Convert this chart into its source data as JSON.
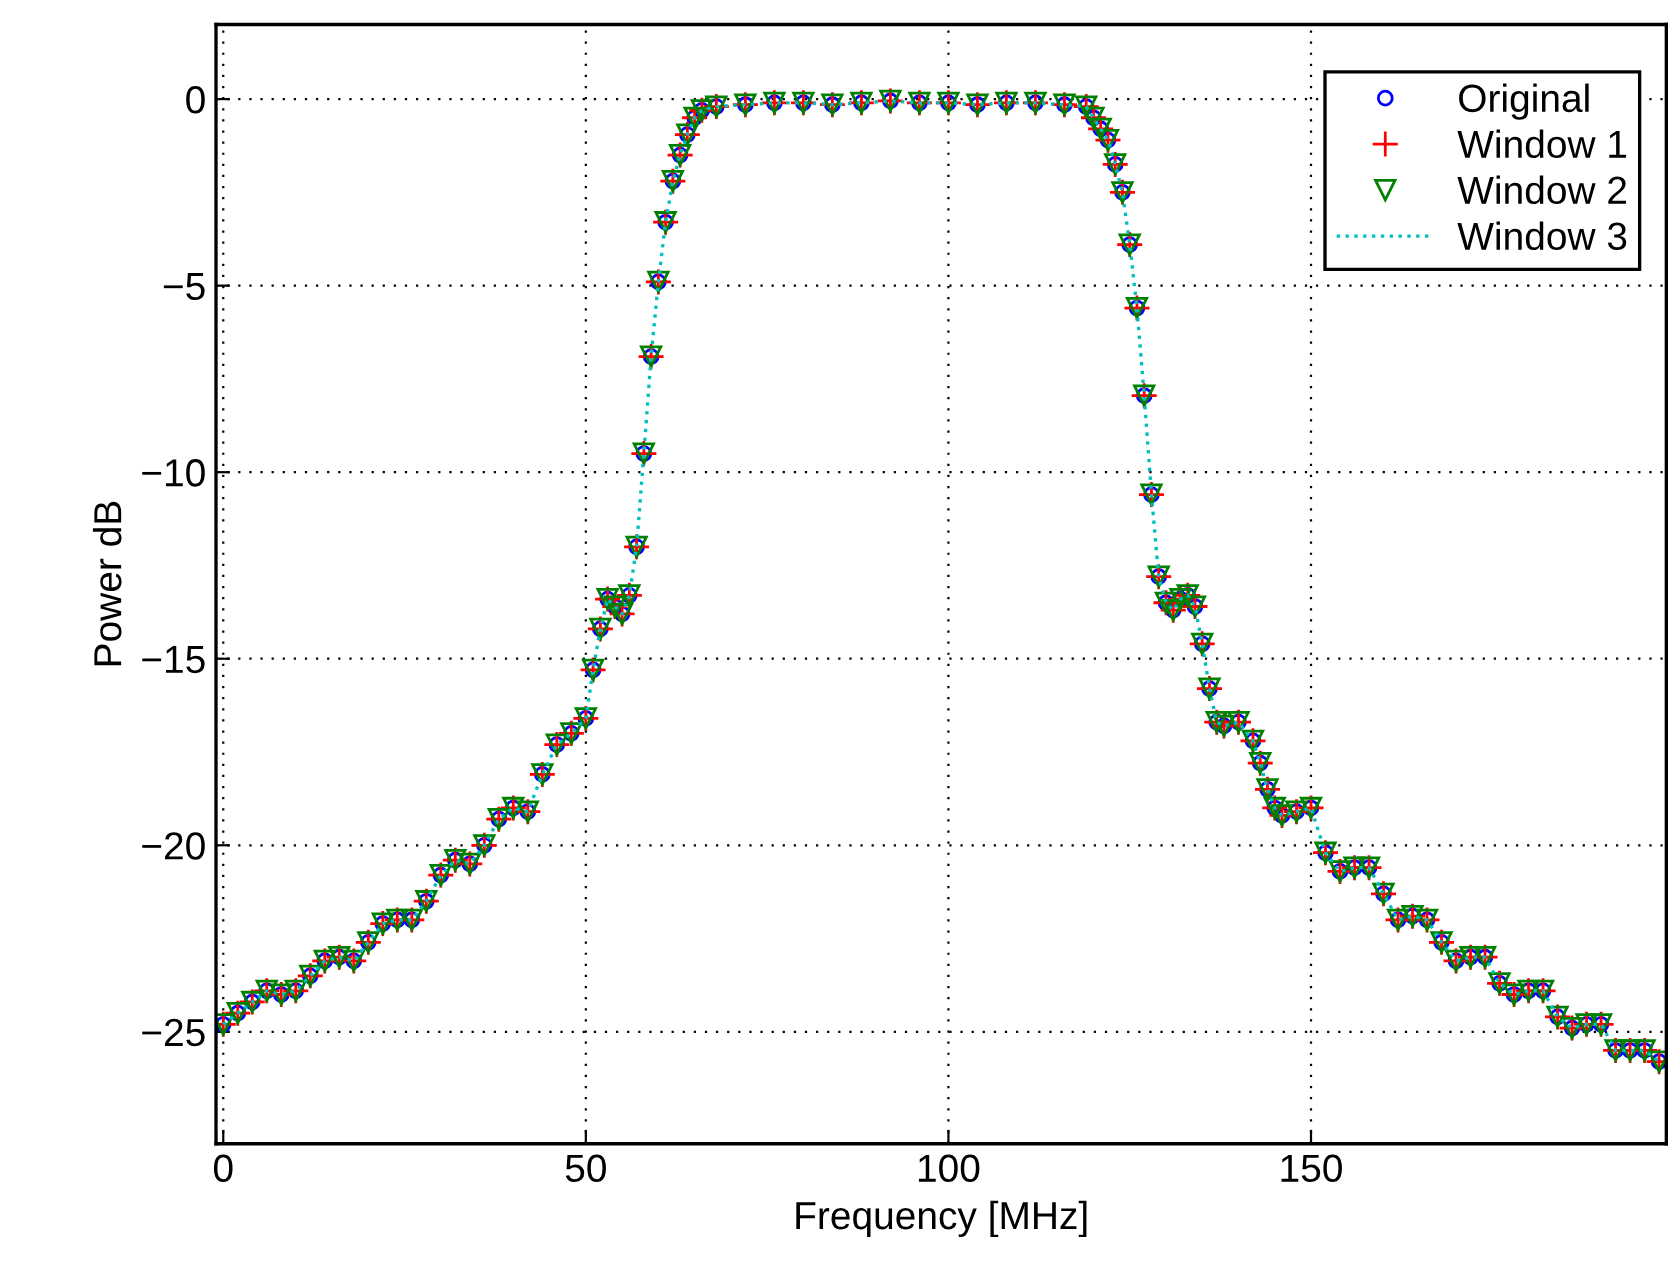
{
  "chart_data": {
    "type": "scatter",
    "xlabel": "Frequency [MHz]",
    "ylabel": "Power dB",
    "xlim": [
      -1,
      199
    ],
    "ylim": [
      -28,
      2
    ],
    "xticks": [
      0,
      50,
      100,
      150
    ],
    "yticks": [
      -25,
      -20,
      -15,
      -10,
      -5,
      0
    ],
    "grid": true,
    "legend": "top right",
    "x": [
      0,
      2,
      4,
      6,
      8,
      10,
      12,
      14,
      16,
      18,
      20,
      22,
      24,
      26,
      28,
      30,
      32,
      34,
      36,
      38,
      40,
      42,
      44,
      46,
      48,
      50,
      51,
      52,
      53,
      54,
      55,
      56,
      57,
      58,
      59,
      60,
      61,
      62,
      63,
      64,
      65,
      66,
      68,
      72,
      76,
      80,
      84,
      88,
      92,
      96,
      100,
      104,
      108,
      112,
      116,
      119,
      120,
      121,
      122,
      123,
      124,
      125,
      126,
      127,
      128,
      129,
      130,
      131,
      132,
      133,
      134,
      135,
      136,
      137,
      138,
      140,
      142,
      143,
      144,
      145,
      146,
      148,
      150,
      152,
      154,
      156,
      158,
      160,
      162,
      164,
      166,
      168,
      170,
      172,
      174,
      176,
      178,
      180,
      182,
      184,
      186,
      188,
      190,
      192,
      194,
      196,
      198
    ],
    "series": [
      {
        "name": "Original",
        "marker": "circle",
        "color": "#0000ff",
        "values": [
          -24.8,
          -24.5,
          -24.2,
          -23.9,
          -24.0,
          -23.9,
          -23.5,
          -23.1,
          -23.0,
          -23.1,
          -22.6,
          -22.1,
          -22.0,
          -22.0,
          -21.5,
          -20.8,
          -20.4,
          -20.5,
          -20.0,
          -19.3,
          -19.0,
          -19.1,
          -18.1,
          -17.3,
          -17.0,
          -16.6,
          -15.3,
          -14.2,
          -13.4,
          -13.6,
          -13.8,
          -13.3,
          -12.0,
          -9.5,
          -6.9,
          -4.9,
          -3.3,
          -2.2,
          -1.5,
          -0.95,
          -0.5,
          -0.3,
          -0.2,
          -0.15,
          -0.1,
          -0.1,
          -0.15,
          -0.1,
          -0.05,
          -0.1,
          -0.1,
          -0.15,
          -0.1,
          -0.1,
          -0.15,
          -0.2,
          -0.5,
          -0.8,
          -1.1,
          -1.75,
          -2.5,
          -3.9,
          -5.6,
          -7.95,
          -10.6,
          -12.8,
          -13.5,
          -13.7,
          -13.4,
          -13.3,
          -13.6,
          -14.6,
          -15.8,
          -16.7,
          -16.8,
          -16.7,
          -17.2,
          -17.8,
          -18.5,
          -19.0,
          -19.2,
          -19.1,
          -19.0,
          -20.2,
          -20.7,
          -20.6,
          -20.6,
          -21.3,
          -22.0,
          -21.9,
          -22.0,
          -22.6,
          -23.1,
          -23.0,
          -23.0,
          -23.7,
          -24.0,
          -23.9,
          -23.9,
          -24.6,
          -24.9,
          -24.8,
          -24.8,
          -25.5,
          -25.5,
          -25.5,
          -25.8
        ]
      },
      {
        "name": "Window 1",
        "marker": "cross",
        "color": "#ff0000",
        "values": [
          -24.8,
          -24.5,
          -24.2,
          -23.9,
          -24.0,
          -23.9,
          -23.5,
          -23.1,
          -23.0,
          -23.1,
          -22.6,
          -22.1,
          -22.0,
          -22.0,
          -21.5,
          -20.8,
          -20.4,
          -20.5,
          -20.0,
          -19.3,
          -19.0,
          -19.1,
          -18.1,
          -17.3,
          -17.0,
          -16.6,
          -15.3,
          -14.2,
          -13.4,
          -13.6,
          -13.8,
          -13.3,
          -12.0,
          -9.5,
          -6.9,
          -4.9,
          -3.3,
          -2.2,
          -1.5,
          -0.95,
          -0.5,
          -0.3,
          -0.2,
          -0.15,
          -0.1,
          -0.1,
          -0.15,
          -0.1,
          -0.05,
          -0.1,
          -0.1,
          -0.15,
          -0.1,
          -0.1,
          -0.15,
          -0.2,
          -0.5,
          -0.8,
          -1.1,
          -1.75,
          -2.5,
          -3.9,
          -5.6,
          -7.95,
          -10.6,
          -12.8,
          -13.5,
          -13.7,
          -13.4,
          -13.3,
          -13.6,
          -14.6,
          -15.8,
          -16.7,
          -16.8,
          -16.7,
          -17.2,
          -17.8,
          -18.5,
          -19.0,
          -19.2,
          -19.1,
          -19.0,
          -20.2,
          -20.7,
          -20.6,
          -20.6,
          -21.3,
          -22.0,
          -21.9,
          -22.0,
          -22.6,
          -23.1,
          -23.0,
          -23.0,
          -23.7,
          -24.0,
          -23.9,
          -23.9,
          -24.6,
          -24.9,
          -24.8,
          -24.8,
          -25.5,
          -25.5,
          -25.5,
          -25.8
        ]
      },
      {
        "name": "Window 2",
        "marker": "triangle",
        "color": "#008000",
        "values": [
          -24.8,
          -24.5,
          -24.2,
          -23.9,
          -24.0,
          -23.9,
          -23.5,
          -23.1,
          -23.0,
          -23.1,
          -22.6,
          -22.1,
          -22.0,
          -22.0,
          -21.5,
          -20.8,
          -20.4,
          -20.5,
          -20.0,
          -19.3,
          -19.0,
          -19.1,
          -18.1,
          -17.3,
          -17.0,
          -16.6,
          -15.3,
          -14.2,
          -13.4,
          -13.6,
          -13.8,
          -13.3,
          -12.0,
          -9.5,
          -6.9,
          -4.9,
          -3.3,
          -2.2,
          -1.5,
          -0.95,
          -0.5,
          -0.3,
          -0.2,
          -0.15,
          -0.1,
          -0.1,
          -0.15,
          -0.1,
          -0.05,
          -0.1,
          -0.1,
          -0.15,
          -0.1,
          -0.1,
          -0.15,
          -0.2,
          -0.5,
          -0.8,
          -1.1,
          -1.75,
          -2.5,
          -3.9,
          -5.6,
          -7.95,
          -10.6,
          -12.8,
          -13.5,
          -13.7,
          -13.4,
          -13.3,
          -13.6,
          -14.6,
          -15.8,
          -16.7,
          -16.8,
          -16.7,
          -17.2,
          -17.8,
          -18.5,
          -19.0,
          -19.2,
          -19.1,
          -19.0,
          -20.2,
          -20.7,
          -20.6,
          -20.6,
          -21.3,
          -22.0,
          -21.9,
          -22.0,
          -22.6,
          -23.1,
          -23.0,
          -23.0,
          -23.7,
          -24.0,
          -23.9,
          -23.9,
          -24.6,
          -24.9,
          -24.8,
          -24.8,
          -25.5,
          -25.5,
          -25.5,
          -25.8
        ]
      },
      {
        "name": "Window 3",
        "type": "line",
        "line_style": "dotted",
        "color": "#00bfbf",
        "values": [
          -24.8,
          -24.5,
          -24.2,
          -23.9,
          -24.0,
          -23.9,
          -23.5,
          -23.1,
          -23.0,
          -23.1,
          -22.6,
          -22.1,
          -22.0,
          -22.0,
          -21.5,
          -20.8,
          -20.4,
          -20.5,
          -20.0,
          -19.3,
          -19.0,
          -19.1,
          -18.1,
          -17.3,
          -17.0,
          -16.6,
          -15.3,
          -14.2,
          -13.4,
          -13.6,
          -13.8,
          -13.3,
          -12.0,
          -9.5,
          -6.9,
          -4.9,
          -3.3,
          -2.2,
          -1.5,
          -0.95,
          -0.5,
          -0.3,
          -0.2,
          -0.15,
          -0.1,
          -0.1,
          -0.15,
          -0.1,
          -0.05,
          -0.1,
          -0.1,
          -0.15,
          -0.1,
          -0.1,
          -0.15,
          -0.2,
          -0.5,
          -0.8,
          -1.1,
          -1.75,
          -2.5,
          -3.9,
          -5.6,
          -7.95,
          -10.6,
          -12.8,
          -13.5,
          -13.7,
          -13.4,
          -13.3,
          -13.6,
          -14.6,
          -15.8,
          -16.7,
          -16.8,
          -16.7,
          -17.2,
          -17.8,
          -18.5,
          -19.0,
          -19.2,
          -19.1,
          -19.0,
          -20.2,
          -20.7,
          -20.6,
          -20.6,
          -21.3,
          -22.0,
          -21.9,
          -22.0,
          -22.6,
          -23.1,
          -23.0,
          -23.0,
          -23.7,
          -24.0,
          -23.9,
          -23.9,
          -24.6,
          -24.9,
          -24.8,
          -24.8,
          -25.5,
          -25.5,
          -25.5,
          -25.8
        ]
      }
    ]
  }
}
